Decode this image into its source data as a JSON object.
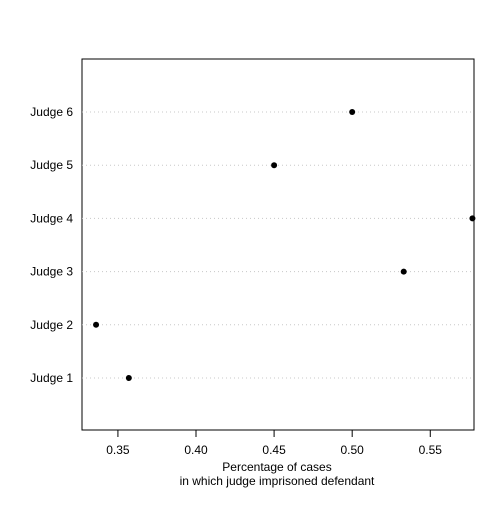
{
  "chart_data": {
    "type": "scatter",
    "orientation": "dot-plot",
    "title": "",
    "xlabel": [
      "Percentage of cases",
      "in which judge imprisoned defendant"
    ],
    "ylabel": "",
    "xlim": [
      0.327,
      0.578
    ],
    "x_ticks": [
      0.35,
      0.4,
      0.45,
      0.5,
      0.55
    ],
    "x_tick_labels": [
      "0.35",
      "0.40",
      "0.45",
      "0.50",
      "0.55"
    ],
    "categories": [
      "Judge 1",
      "Judge 2",
      "Judge 3",
      "Judge 4",
      "Judge 5",
      "Judge 6"
    ],
    "values": [
      0.357,
      0.336,
      0.533,
      0.577,
      0.45,
      0.5
    ],
    "grid": "horizontal dotted lines at each category",
    "legend": "none",
    "colors": {
      "points": "#000000",
      "grid": "#c8c8c8",
      "axis": "#000000"
    }
  }
}
